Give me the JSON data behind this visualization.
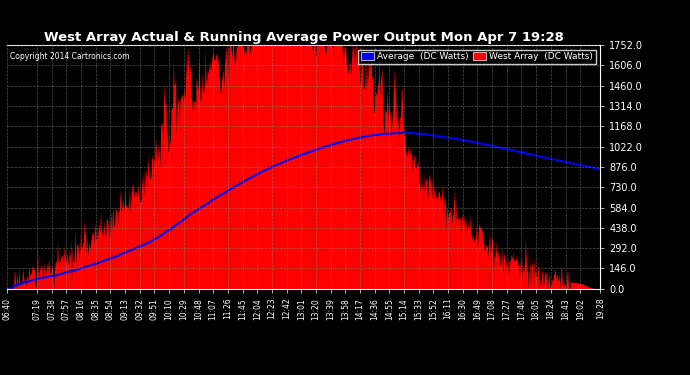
{
  "title": "West Array Actual & Running Average Power Output Mon Apr 7 19:28",
  "copyright": "Copyright 2014 Cartronics.com",
  "legend_avg": "Average  (DC Watts)",
  "legend_west": "West Array  (DC Watts)",
  "yticks": [
    0.0,
    146.0,
    292.0,
    438.0,
    584.0,
    730.0,
    876.0,
    1022.0,
    1168.0,
    1314.0,
    1460.0,
    1606.0,
    1752.0
  ],
  "ymax": 1752.0,
  "ymin": 0.0,
  "bg_color": "#000000",
  "grid_color": "#888888",
  "red_color": "#ff0000",
  "blue_color": "#0000ee",
  "title_color": "#ffffff",
  "tick_color": "#ffffff",
  "xtick_labels": [
    "06:40",
    "07:19",
    "07:38",
    "07:57",
    "08:16",
    "08:35",
    "08:54",
    "09:13",
    "09:32",
    "09:51",
    "10:10",
    "10:29",
    "10:48",
    "11:07",
    "11:26",
    "11:45",
    "12:04",
    "12:23",
    "12:42",
    "13:01",
    "13:20",
    "13:39",
    "13:58",
    "14:17",
    "14:36",
    "14:55",
    "15:14",
    "15:33",
    "15:52",
    "16:11",
    "16:30",
    "16:49",
    "17:08",
    "17:27",
    "17:46",
    "18:05",
    "18:24",
    "18:43",
    "19:02",
    "19:28"
  ],
  "figsize": [
    6.9,
    3.75
  ],
  "dpi": 100,
  "start_hour": 6.6667,
  "end_hour": 19.4667
}
